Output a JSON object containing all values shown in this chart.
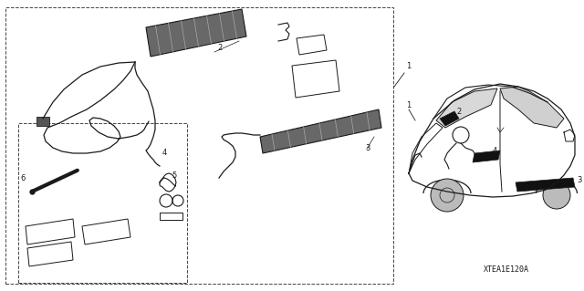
{
  "bg_color": "#ffffff",
  "line_color": "#1a1a1a",
  "figsize": [
    6.4,
    3.19
  ],
  "dpi": 100,
  "car_label": "XTEA1E120A"
}
